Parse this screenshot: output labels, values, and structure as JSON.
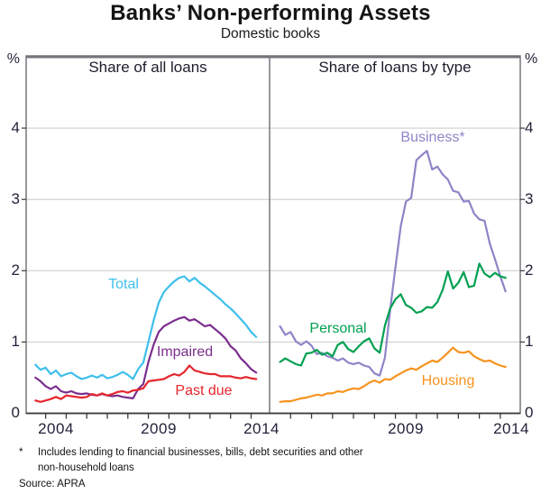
{
  "title": "Banks’ Non-performing Assets",
  "subtitle": "Domestic books",
  "footnote": {
    "marker": "*",
    "line1": "Includes lending to financial businesses, bills, debt securities and other",
    "line2": "non-household loans",
    "source": "Source: APRA"
  },
  "chart_data": {
    "type": "line",
    "title": "Banks’ Non-performing Assets",
    "subtitle": "Domestic books",
    "ylabel": "%",
    "ylim": [
      0,
      5
    ],
    "y_gridlines": [
      1,
      2,
      3,
      4
    ],
    "y_tick_labels": [
      "4",
      "3",
      "2",
      "1",
      "0"
    ],
    "grid": true,
    "legend": "inline-labels",
    "x_start": 2003.5,
    "x_step": 0.25,
    "x_year_ticks": [
      2004,
      2005,
      2006,
      2007,
      2008,
      2009,
      2010,
      2011,
      2012,
      2013,
      2014
    ],
    "panels": [
      {
        "header": "Share of all loans",
        "x_tick_labels": [
          "2004",
          "2009",
          "2014"
        ],
        "series": [
          {
            "name": "Total",
            "color": "#3fbfec",
            "values": [
              0.68,
              0.61,
              0.64,
              0.55,
              0.6,
              0.52,
              0.55,
              0.57,
              0.52,
              0.48,
              0.5,
              0.53,
              0.5,
              0.54,
              0.49,
              0.51,
              0.54,
              0.58,
              0.54,
              0.48,
              0.62,
              0.71,
              1.0,
              1.3,
              1.55,
              1.7,
              1.78,
              1.85,
              1.9,
              1.92,
              1.85,
              1.9,
              1.83,
              1.78,
              1.72,
              1.66,
              1.6,
              1.53,
              1.47,
              1.4,
              1.32,
              1.24,
              1.14,
              1.07
            ]
          },
          {
            "name": "Impaired",
            "color": "#7b2e8d",
            "values": [
              0.5,
              0.45,
              0.38,
              0.34,
              0.38,
              0.31,
              0.29,
              0.31,
              0.28,
              0.27,
              0.28,
              0.26,
              0.25,
              0.27,
              0.25,
              0.24,
              0.25,
              0.23,
              0.22,
              0.21,
              0.34,
              0.41,
              0.72,
              0.96,
              1.14,
              1.22,
              1.26,
              1.3,
              1.33,
              1.35,
              1.3,
              1.32,
              1.27,
              1.22,
              1.24,
              1.18,
              1.12,
              1.05,
              0.94,
              0.88,
              0.77,
              0.7,
              0.62,
              0.57
            ]
          },
          {
            "name": "Past due",
            "color": "#e5262d",
            "values": [
              0.18,
              0.16,
              0.18,
              0.2,
              0.23,
              0.2,
              0.25,
              0.24,
              0.23,
              0.22,
              0.23,
              0.27,
              0.25,
              0.28,
              0.25,
              0.27,
              0.3,
              0.31,
              0.29,
              0.32,
              0.33,
              0.35,
              0.45,
              0.46,
              0.47,
              0.48,
              0.52,
              0.55,
              0.53,
              0.58,
              0.67,
              0.6,
              0.58,
              0.56,
              0.55,
              0.55,
              0.52,
              0.52,
              0.52,
              0.5,
              0.49,
              0.51,
              0.49,
              0.48
            ]
          }
        ]
      },
      {
        "header": "Share of loans by type",
        "x_tick_labels": [
          "2009",
          "2014"
        ],
        "series": [
          {
            "name": "Business*",
            "color": "#8d85c7",
            "values": [
              1.22,
              1.1,
              1.14,
              1.01,
              0.96,
              1.01,
              0.95,
              0.83,
              0.85,
              0.8,
              0.78,
              0.74,
              0.77,
              0.71,
              0.69,
              0.71,
              0.67,
              0.65,
              0.56,
              0.53,
              0.78,
              1.45,
              2.05,
              2.62,
              2.97,
              3.02,
              3.55,
              3.62,
              3.68,
              3.42,
              3.46,
              3.35,
              3.28,
              3.12,
              3.1,
              2.97,
              2.98,
              2.8,
              2.72,
              2.7,
              2.38,
              2.16,
              1.92,
              1.71
            ]
          },
          {
            "name": "Personal",
            "color": "#00a050",
            "values": [
              0.72,
              0.77,
              0.73,
              0.69,
              0.67,
              0.84,
              0.85,
              0.89,
              0.82,
              0.85,
              0.8,
              0.96,
              1.0,
              0.9,
              0.86,
              0.94,
              1.01,
              1.05,
              0.91,
              0.85,
              1.23,
              1.47,
              1.6,
              1.67,
              1.52,
              1.48,
              1.41,
              1.43,
              1.49,
              1.48,
              1.56,
              1.73,
              1.99,
              1.75,
              1.83,
              1.98,
              1.77,
              1.79,
              2.1,
              1.96,
              1.91,
              1.97,
              1.92,
              1.9
            ]
          },
          {
            "name": "Housing",
            "color": "#f7931e",
            "values": [
              0.16,
              0.17,
              0.17,
              0.19,
              0.21,
              0.22,
              0.24,
              0.26,
              0.25,
              0.28,
              0.28,
              0.31,
              0.3,
              0.33,
              0.35,
              0.34,
              0.38,
              0.43,
              0.46,
              0.43,
              0.48,
              0.47,
              0.52,
              0.56,
              0.6,
              0.63,
              0.61,
              0.66,
              0.7,
              0.74,
              0.72,
              0.78,
              0.85,
              0.92,
              0.86,
              0.85,
              0.87,
              0.8,
              0.76,
              0.73,
              0.74,
              0.7,
              0.67,
              0.65
            ]
          }
        ]
      }
    ]
  }
}
